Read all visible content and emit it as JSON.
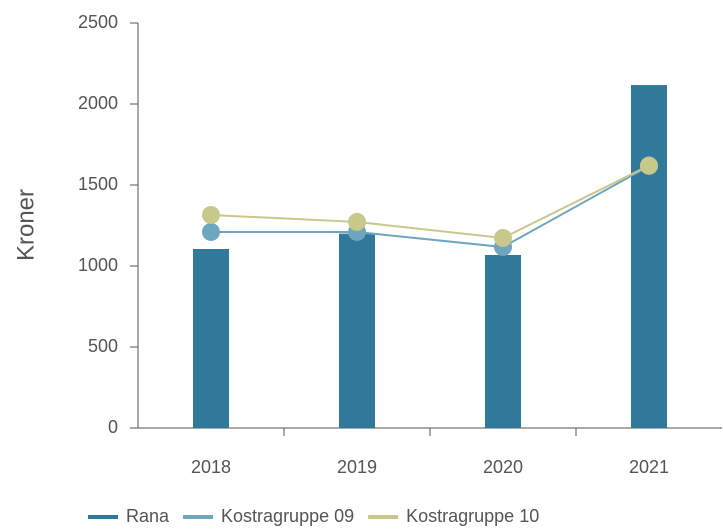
{
  "chart_data": {
    "type": "bar",
    "y_label": "Kroner",
    "categories": [
      "2018",
      "2019",
      "2020",
      "2021"
    ],
    "series": [
      {
        "name": "Rana",
        "type": "bar",
        "color": "#31799a",
        "values": [
          1105,
          1200,
          1068,
          2117
        ]
      },
      {
        "name": "Kostragruppe 09",
        "type": "line",
        "color": "#6ea6bf",
        "values": [
          1210,
          1210,
          1117,
          1617
        ]
      },
      {
        "name": "Kostragruppe 10",
        "type": "line",
        "color": "#c8c88a",
        "values": [
          1315,
          1272,
          1173,
          1620
        ]
      }
    ],
    "ylim": [
      0,
      2500
    ],
    "yticks": [
      0,
      500,
      1000,
      1500,
      2000,
      2500
    ],
    "grid": false,
    "legend": "bottom"
  }
}
